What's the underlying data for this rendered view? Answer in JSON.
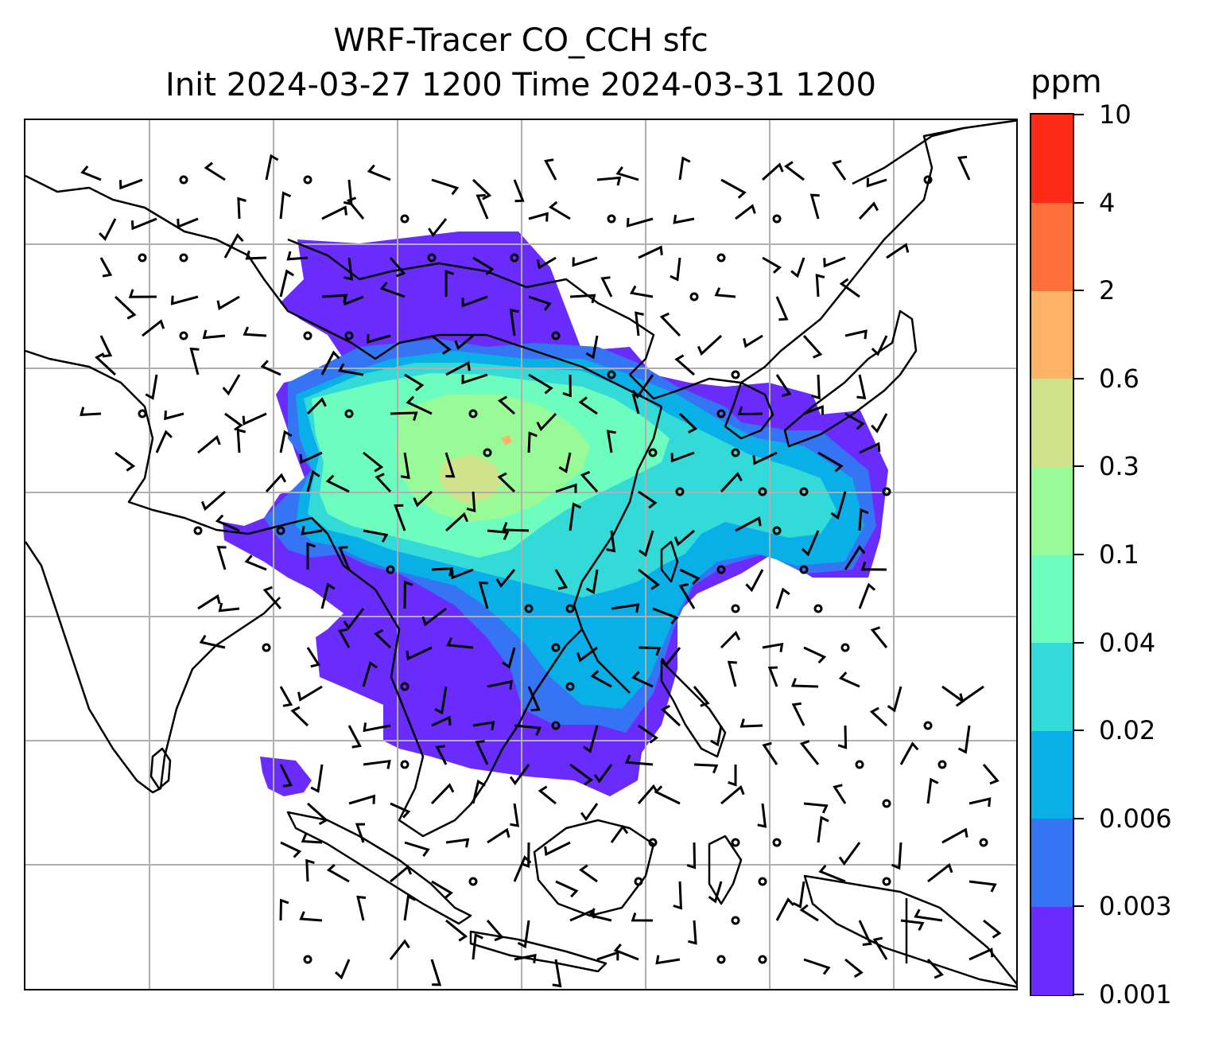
{
  "title": {
    "line1": "WRF-Tracer CO_CCH sfc",
    "line2": "Init 2024-03-27 1200 Time 2024-03-31 1200"
  },
  "colorbar": {
    "unit": "ppm",
    "levels": [
      "0.001",
      "0.003",
      "0.006",
      "0.02",
      "0.04",
      "0.1",
      "0.3",
      "0.6",
      "2",
      "4",
      "10"
    ],
    "colors": [
      "#6a2bfd",
      "#3575f4",
      "#09b0e8",
      "#34dad8",
      "#6dfdbe",
      "#98fb98",
      "#d0e28c",
      "#feb366",
      "#fe6f3a",
      "#fe2a16"
    ]
  },
  "map": {
    "coastline_color": "#000000",
    "gridline_color": "#b0b0b0",
    "background": "#ffffff"
  },
  "chart_data": {
    "type": "heatmap",
    "title": "WRF-Tracer CO_CCH sfc\nInit 2024-03-27 1200 Time 2024-03-31 1200",
    "colorbar_label": "ppm",
    "colorbar_levels": [
      0.001,
      0.003,
      0.006,
      0.02,
      0.04,
      0.1,
      0.3,
      0.6,
      2,
      4,
      10
    ],
    "overlay": "surface wind barbs",
    "grid": true
  }
}
